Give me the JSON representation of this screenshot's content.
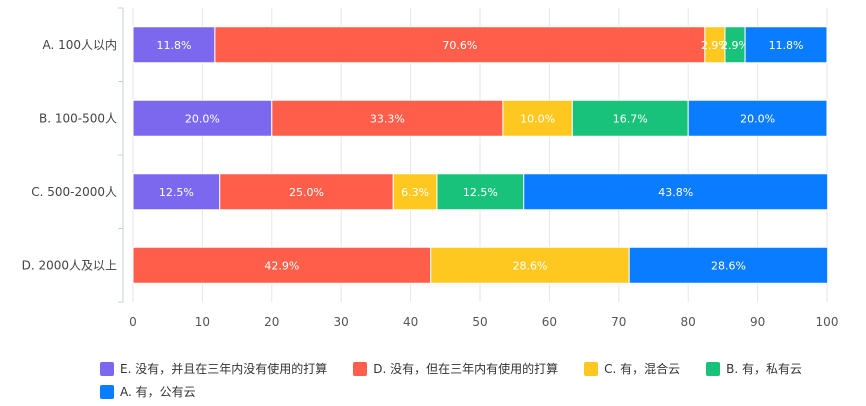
{
  "chart_data": {
    "type": "bar",
    "orientation": "horizontal",
    "stacked": true,
    "categories": [
      "A. 100人以内",
      "B. 100-500人",
      "C. 500-2000人",
      "D. 2000人及以上"
    ],
    "series": [
      {
        "name": "E. 没有，并且在三年内没有使用的打算",
        "color": "#7B68EE",
        "values": [
          11.8,
          20.0,
          12.5,
          0
        ],
        "labels": [
          "11.8%",
          "20.0%",
          "12.5%",
          ""
        ]
      },
      {
        "name": "D. 没有，但在三年内有使用的打算",
        "color": "#FF5F4A",
        "values": [
          70.6,
          33.3,
          25.0,
          42.9
        ],
        "labels": [
          "70.6%",
          "33.3%",
          "25.0%",
          "42.9%"
        ]
      },
      {
        "name": "C. 有，混合云",
        "color": "#FFC820",
        "values": [
          2.9,
          10.0,
          6.3,
          28.6
        ],
        "labels": [
          "2.9%",
          "10.0%",
          "6.3%",
          "28.6%"
        ]
      },
      {
        "name": "B. 有，私有云",
        "color": "#19C27A",
        "values": [
          2.9,
          16.7,
          12.5,
          0
        ],
        "labels": [
          "2.9%",
          "16.7%",
          "12.5%",
          ""
        ]
      },
      {
        "name": "A. 有，公有云",
        "color": "#0A7CFF",
        "values": [
          11.8,
          20.0,
          43.8,
          28.6
        ],
        "labels": [
          "11.8%",
          "20.0%",
          "43.8%",
          "28.6%"
        ]
      }
    ],
    "xlim": [
      0,
      100
    ],
    "xticks": [
      "0",
      "10",
      "20",
      "30",
      "40",
      "50",
      "60",
      "70",
      "80",
      "90",
      "100"
    ],
    "grid": true,
    "legend_position": "bottom"
  }
}
